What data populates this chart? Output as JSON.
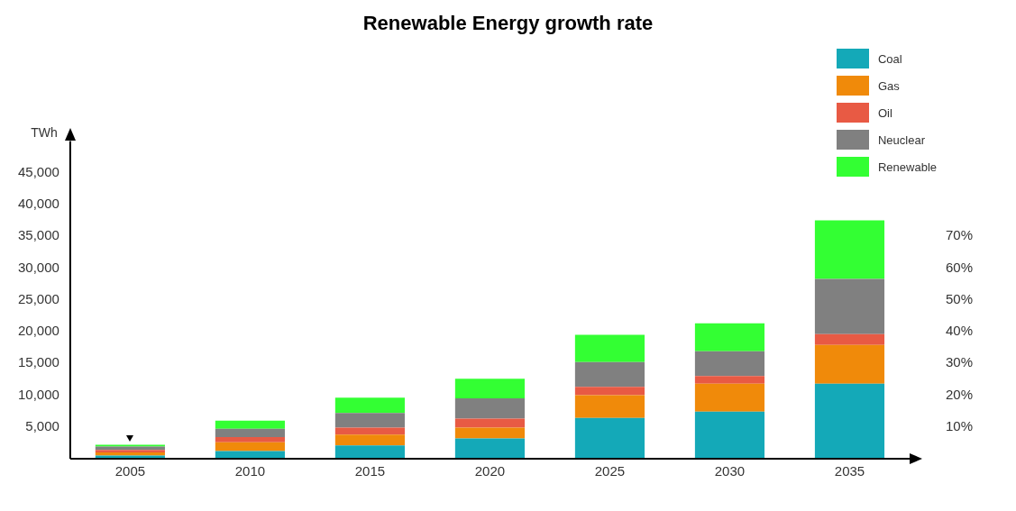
{
  "chart_data": {
    "type": "bar",
    "title": "Renewable Energy growth rate",
    "ylabel": "TWh",
    "categories": [
      "2005",
      "2010",
      "2015",
      "2020",
      "2025",
      "2030",
      "2035"
    ],
    "stacked": true,
    "series": [
      {
        "name": "Coal",
        "color": "#14a9b8",
        "values": [
          500,
          1200,
          2100,
          3200,
          6400,
          7400,
          11800
        ]
      },
      {
        "name": "Gas",
        "color": "#f08a0a",
        "values": [
          500,
          1400,
          1700,
          1700,
          3600,
          4400,
          6100
        ]
      },
      {
        "name": "Oil",
        "color": "#e85a44",
        "values": [
          400,
          800,
          1100,
          1400,
          1300,
          1200,
          1700
        ]
      },
      {
        "name": "Neuclear",
        "color": "#808080",
        "values": [
          500,
          1300,
          2300,
          3200,
          3900,
          3900,
          8700
        ]
      },
      {
        "name": "Renewable",
        "color": "#33ff33",
        "values": [
          300,
          1300,
          2400,
          3100,
          4300,
          4400,
          9200
        ]
      }
    ],
    "ylim": [
      0,
      50000
    ],
    "yticks": [
      {
        "value": 5000,
        "label": "5,000"
      },
      {
        "value": 10000,
        "label": "10,000"
      },
      {
        "value": 15000,
        "label": "15,000"
      },
      {
        "value": 20000,
        "label": "20,000"
      },
      {
        "value": 25000,
        "label": "25,000"
      },
      {
        "value": 30000,
        "label": "30,000"
      },
      {
        "value": 35000,
        "label": "35,000"
      },
      {
        "value": 40000,
        "label": "40,000"
      },
      {
        "value": 45000,
        "label": "45,000"
      }
    ],
    "y2lim": [
      0,
      100
    ],
    "y2ticks": [
      {
        "value": 10,
        "label": "10%"
      },
      {
        "value": 20,
        "label": "20%"
      },
      {
        "value": 30,
        "label": "30%"
      },
      {
        "value": 40,
        "label": "40%"
      },
      {
        "value": 50,
        "label": "50%"
      },
      {
        "value": 60,
        "label": "60%"
      },
      {
        "value": 70,
        "label": "70%"
      }
    ],
    "grid": false,
    "legend": "top right"
  }
}
